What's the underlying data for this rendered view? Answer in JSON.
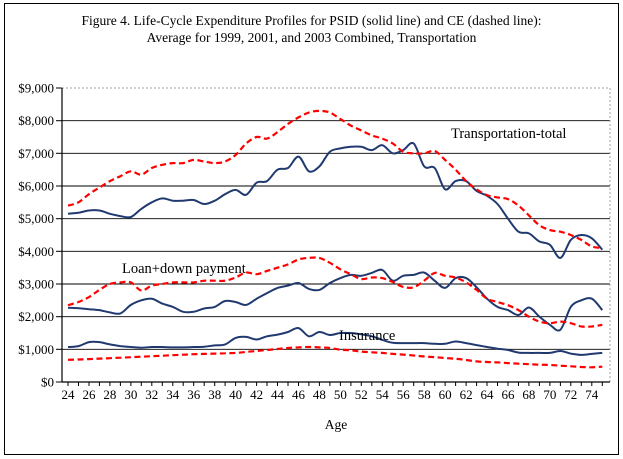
{
  "figure": {
    "title_line1": "Figure 4. Life-Cycle Expenditure Profiles for PSID (solid line) and CE (dashed line):",
    "title_line2": "Average for 1999, 2001, and 2003 Combined, Transportation"
  },
  "colors": {
    "psid_solid": "#203a70",
    "ce_dashed": "#ff0000",
    "gridline": "#000000",
    "frame_dotted": "#a0a0a0"
  },
  "chart_data": {
    "type": "line",
    "title": "Figure 4. Life-Cycle Expenditure Profiles for PSID (solid line) and CE (dashed line): Average for 1999, 2001, and 2003 Combined, Transportation",
    "xlabel": "Age",
    "ylabel": "",
    "xlim": [
      24,
      75.5
    ],
    "ylim": [
      0,
      9000
    ],
    "grid": "horizontal",
    "legend": "none",
    "x_ticks": [
      24,
      26,
      28,
      30,
      32,
      34,
      36,
      38,
      40,
      42,
      44,
      46,
      48,
      50,
      52,
      54,
      56,
      58,
      60,
      62,
      64,
      66,
      68,
      70,
      72,
      74
    ],
    "y_ticks": [
      0,
      1000,
      2000,
      3000,
      4000,
      5000,
      6000,
      7000,
      8000,
      9000
    ],
    "y_tick_labels": [
      "$0",
      "$1,000",
      "$2,000",
      "$3,000",
      "$4,000",
      "$5,000",
      "$6,000",
      "$7,000",
      "$8,000",
      "$9,000"
    ],
    "annotations": [
      {
        "text": "Transportation-total",
        "age": 60.5,
        "value": 7700
      },
      {
        "text": "Loan+down payment",
        "age": 29.2,
        "value": 3600
      },
      {
        "text": "Insurance",
        "age": 50.0,
        "value": 1560
      }
    ],
    "x": [
      24,
      25,
      26,
      27,
      28,
      29,
      30,
      31,
      32,
      33,
      34,
      35,
      36,
      37,
      38,
      39,
      40,
      41,
      42,
      43,
      44,
      45,
      46,
      47,
      48,
      49,
      50,
      51,
      52,
      53,
      54,
      55,
      56,
      57,
      58,
      59,
      60,
      61,
      62,
      63,
      64,
      65,
      66,
      67,
      68,
      69,
      70,
      71,
      72,
      73,
      74,
      75
    ],
    "series": [
      {
        "name": "Transportation-total PSID",
        "source": "PSID",
        "style": "solid",
        "values": [
          5150,
          5180,
          5250,
          5250,
          5150,
          5080,
          5050,
          5300,
          5500,
          5620,
          5550,
          5550,
          5570,
          5450,
          5550,
          5750,
          5880,
          5730,
          6100,
          6150,
          6500,
          6550,
          6900,
          6450,
          6600,
          7050,
          7150,
          7200,
          7200,
          7100,
          7250,
          7000,
          7100,
          7300,
          6600,
          6550,
          5900,
          6150,
          6150,
          5850,
          5700,
          5450,
          5000,
          4600,
          4550,
          4300,
          4200,
          3800,
          4350,
          4500,
          4400,
          4050
        ]
      },
      {
        "name": "Transportation-total CE",
        "source": "CE",
        "style": "dashed",
        "values": [
          5400,
          5500,
          5750,
          5950,
          6150,
          6300,
          6450,
          6350,
          6550,
          6650,
          6700,
          6700,
          6800,
          6750,
          6700,
          6750,
          6950,
          7300,
          7500,
          7450,
          7650,
          7900,
          8100,
          8250,
          8300,
          8250,
          8050,
          7850,
          7700,
          7550,
          7450,
          7300,
          7050,
          7000,
          7000,
          7070,
          6800,
          6500,
          6150,
          5900,
          5720,
          5650,
          5600,
          5400,
          5100,
          4800,
          4650,
          4600,
          4500,
          4350,
          4150,
          4100
        ]
      },
      {
        "name": "Loan+down payment PSID",
        "source": "PSID",
        "style": "solid",
        "values": [
          2270,
          2260,
          2230,
          2200,
          2130,
          2100,
          2360,
          2500,
          2550,
          2400,
          2300,
          2150,
          2150,
          2250,
          2300,
          2480,
          2450,
          2360,
          2550,
          2720,
          2880,
          2950,
          3030,
          2850,
          2820,
          3030,
          3180,
          3280,
          3250,
          3340,
          3430,
          3100,
          3250,
          3280,
          3350,
          3100,
          2880,
          3180,
          3180,
          2900,
          2550,
          2300,
          2200,
          2050,
          2280,
          2000,
          1750,
          1600,
          2300,
          2500,
          2550,
          2200
        ]
      },
      {
        "name": "Loan+down payment CE",
        "source": "CE",
        "style": "dashed",
        "values": [
          2350,
          2450,
          2600,
          2820,
          3000,
          3050,
          3050,
          2800,
          2950,
          3000,
          3050,
          3050,
          3050,
          3100,
          3100,
          3100,
          3200,
          3350,
          3300,
          3400,
          3500,
          3600,
          3750,
          3800,
          3800,
          3650,
          3450,
          3300,
          3150,
          3200,
          3180,
          3060,
          2910,
          2900,
          3100,
          3340,
          3250,
          3200,
          3050,
          2820,
          2550,
          2450,
          2350,
          2200,
          2000,
          1850,
          1800,
          1850,
          1800,
          1700,
          1700,
          1750
        ]
      },
      {
        "name": "Insurance PSID",
        "source": "PSID",
        "style": "solid",
        "values": [
          1070,
          1100,
          1220,
          1220,
          1150,
          1100,
          1070,
          1050,
          1070,
          1070,
          1060,
          1060,
          1070,
          1080,
          1120,
          1150,
          1350,
          1380,
          1300,
          1400,
          1450,
          1530,
          1650,
          1400,
          1530,
          1440,
          1500,
          1500,
          1460,
          1400,
          1290,
          1200,
          1190,
          1190,
          1190,
          1170,
          1170,
          1240,
          1190,
          1130,
          1070,
          1020,
          980,
          900,
          890,
          890,
          890,
          950,
          870,
          830,
          860,
          890
        ]
      },
      {
        "name": "Insurance CE",
        "source": "CE",
        "style": "dashed",
        "values": [
          680,
          690,
          700,
          715,
          730,
          745,
          760,
          775,
          790,
          805,
          820,
          835,
          850,
          860,
          870,
          880,
          890,
          920,
          950,
          980,
          1010,
          1040,
          1060,
          1070,
          1060,
          1040,
          990,
          970,
          930,
          910,
          890,
          860,
          840,
          810,
          780,
          760,
          735,
          710,
          675,
          630,
          612,
          600,
          580,
          560,
          545,
          530,
          520,
          500,
          480,
          460,
          450,
          470
        ]
      }
    ]
  }
}
